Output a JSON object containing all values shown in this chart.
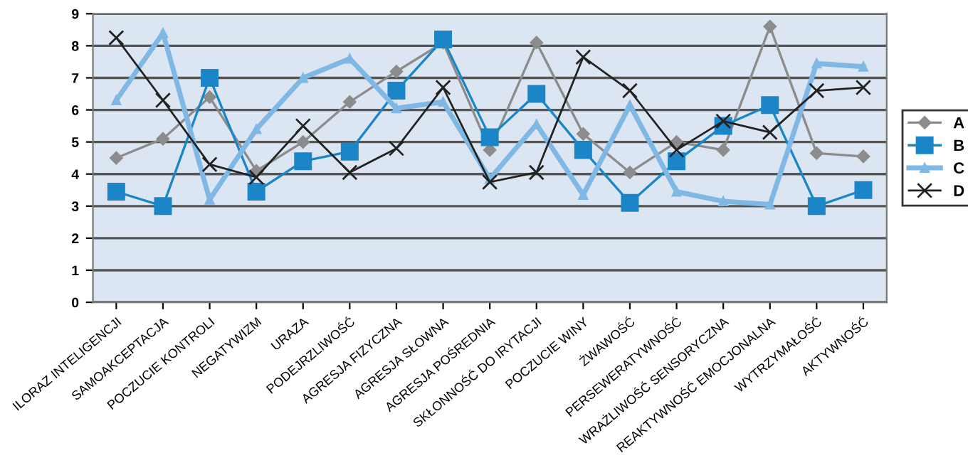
{
  "chart_data": {
    "type": "line",
    "categories": [
      "ILORAZ INTELIGENCJI",
      "SAMOAKCEPTACJA",
      "POCZUCIE KONTROLI",
      "NEGATYWIZM",
      "URAZA",
      "PODEJRZLIWOŚĆ",
      "AGRESJA FIZYCZNA",
      "AGRESJA SŁOWNA",
      "AGRESJA POŚREDNIA",
      "SKŁONNOŚĆ DO IRYTACJI",
      "POCZUCIE WINY",
      "ŻWAWOŚĆ",
      "PERSEWERATYWNOŚĆ",
      "WRAŻLIWOŚĆ SENSORYCZNA",
      "REAKTYWNOŚĆ EMOCJONALNA",
      "WYTRZYMAŁOŚĆ",
      "AKTYWNOŚĆ"
    ],
    "series": [
      {
        "name": "A",
        "color": "#8c8c8c",
        "marker": "diamond",
        "values": [
          4.5,
          5.1,
          6.4,
          4.1,
          5.0,
          6.25,
          7.2,
          8.1,
          4.75,
          8.1,
          5.25,
          4.05,
          5.0,
          4.75,
          8.6,
          4.65,
          4.55
        ]
      },
      {
        "name": "B",
        "color": "#1a86c8",
        "marker": "square",
        "values": [
          3.45,
          3.0,
          7.0,
          3.45,
          4.4,
          4.7,
          6.6,
          8.2,
          5.15,
          6.5,
          4.75,
          3.1,
          4.4,
          5.5,
          6.15,
          3.0,
          3.5
        ]
      },
      {
        "name": "C",
        "color": "#7fb8e4",
        "marker": "triangle",
        "values": [
          6.3,
          8.4,
          3.2,
          5.4,
          7.0,
          7.6,
          6.05,
          6.25,
          3.85,
          5.55,
          3.35,
          6.15,
          3.45,
          3.15,
          3.05,
          7.45,
          7.35
        ]
      },
      {
        "name": "D",
        "color": "#222222",
        "marker": "cross",
        "values": [
          8.25,
          6.3,
          4.3,
          3.9,
          5.5,
          4.05,
          4.8,
          6.7,
          3.75,
          4.05,
          7.65,
          6.6,
          4.75,
          5.65,
          5.3,
          6.6,
          6.7
        ]
      }
    ],
    "ylim": [
      0,
      9
    ],
    "yticks": [
      0,
      1,
      2,
      3,
      4,
      5,
      6,
      7,
      8,
      9
    ],
    "grid": "y",
    "legend": "right"
  }
}
